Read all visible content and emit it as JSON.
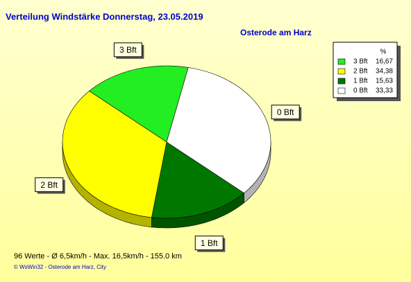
{
  "chart_data": {
    "type": "pie",
    "title": "Verteilung Windstärke  Donnerstag, 23.05.2019",
    "subtitle": "Osterode am Harz",
    "legend_header": "%",
    "legend": "top-right",
    "categories": [
      "3 Bft",
      "2 Bft",
      "1 Bft",
      "0 Bft"
    ],
    "values": [
      16.67,
      34.38,
      15.63,
      33.33
    ],
    "value_labels": [
      "16,67",
      "34,38",
      "15,63",
      "33,33"
    ],
    "colors": [
      "#22ee22",
      "#ffff00",
      "#007800",
      "#ffffff"
    ],
    "footer": "96 Werte   -   Ø 6,5km/h  -  Max. 16,5km/h   -   155.0 km",
    "copyright": "© WsWin32  -  Osterode am Harz, City"
  }
}
